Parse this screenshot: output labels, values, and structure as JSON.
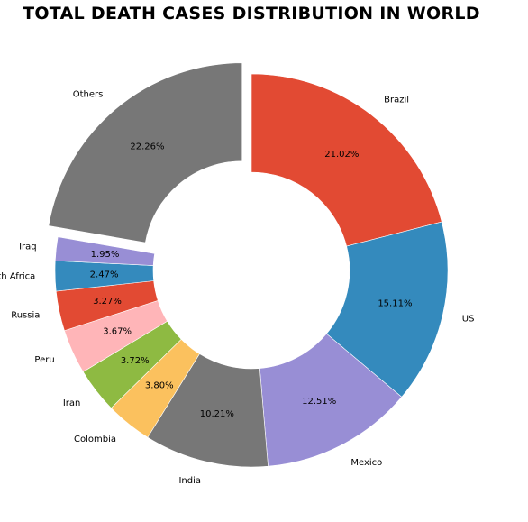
{
  "chart_data": {
    "type": "pie",
    "donut": true,
    "title": "TOTAL DEATH CASES DISTRIBUTION IN WORLD",
    "legend": "none",
    "slices": [
      {
        "label": "Brazil",
        "value": 21.02,
        "pct_label": "21.02%",
        "color": "#E24A33",
        "exploded": false
      },
      {
        "label": "US",
        "value": 15.11,
        "pct_label": "15.11%",
        "color": "#348ABD",
        "exploded": false
      },
      {
        "label": "Mexico",
        "value": 12.51,
        "pct_label": "12.51%",
        "color": "#988ED5",
        "exploded": false
      },
      {
        "label": "India",
        "value": 10.21,
        "pct_label": "10.21%",
        "color": "#777777",
        "exploded": false
      },
      {
        "label": "Colombia",
        "value": 3.8,
        "pct_label": "3.80%",
        "color": "#FBC15E",
        "exploded": false
      },
      {
        "label": "Iran",
        "value": 3.72,
        "pct_label": "3.72%",
        "color": "#8EBA42",
        "exploded": false
      },
      {
        "label": "Peru",
        "value": 3.67,
        "pct_label": "3.67%",
        "color": "#FFB5B8",
        "exploded": false
      },
      {
        "label": "Russia",
        "value": 3.27,
        "pct_label": "3.27%",
        "color": "#E24A33",
        "exploded": false
      },
      {
        "label": "South Africa",
        "value": 2.47,
        "pct_label": "2.47%",
        "color": "#348ABD",
        "exploded": false
      },
      {
        "label": "Iraq",
        "value": 1.95,
        "pct_label": "1.95%",
        "color": "#988ED5",
        "exploded": false
      },
      {
        "label": "Others",
        "value": 22.26,
        "pct_label": "22.26%",
        "color": "#777777",
        "exploded": true
      }
    ]
  }
}
